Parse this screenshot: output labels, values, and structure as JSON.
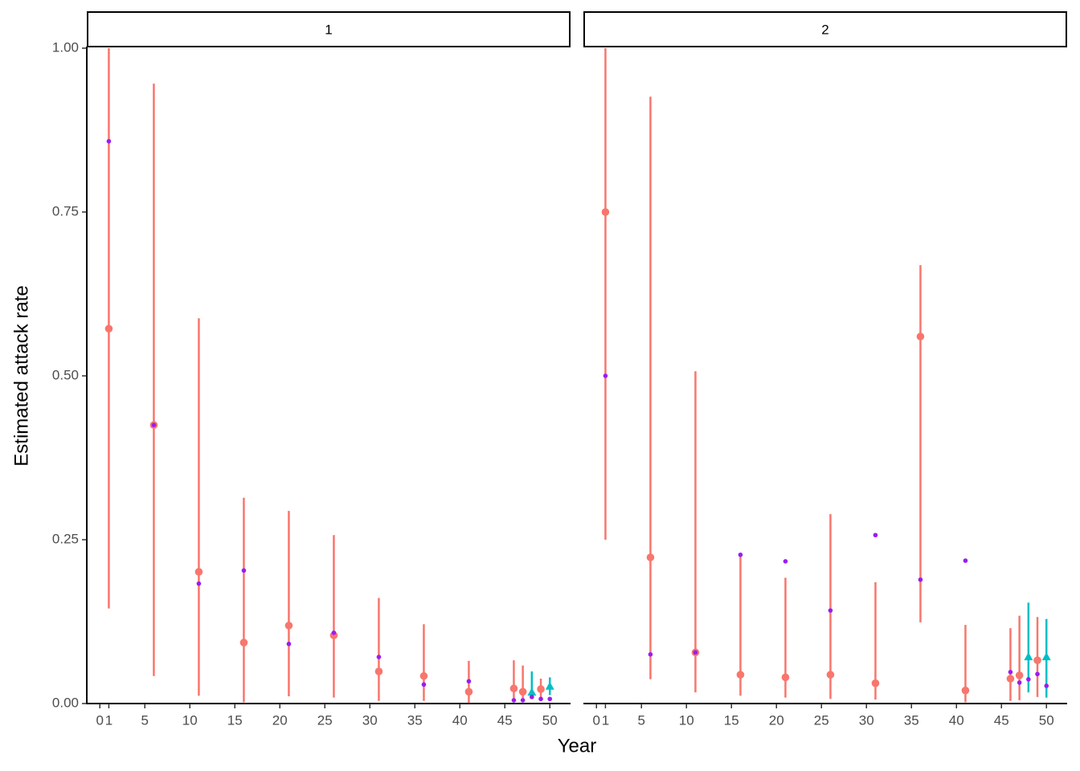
{
  "chart_data": [
    {
      "type": "errorbar",
      "title": "1",
      "xlabel": "Year",
      "ylabel": "Estimated attack rate",
      "x": [
        1,
        6,
        11,
        16,
        21,
        26,
        31,
        36,
        41,
        46,
        47,
        48,
        49,
        50
      ],
      "xlim": [
        -1.45,
        52.3
      ],
      "xticks": [
        0,
        1,
        5,
        10,
        15,
        20,
        25,
        30,
        35,
        40,
        45,
        50
      ],
      "ylim": [
        0,
        1
      ],
      "yticks": [
        {
          "value": 0,
          "label": "0.00"
        },
        {
          "value": 0.25,
          "label": "0.25"
        },
        {
          "value": 0.5,
          "label": "0.50"
        },
        {
          "value": 0.75,
          "label": "0.75"
        },
        {
          "value": 1,
          "label": "1.00"
        }
      ],
      "series": [
        {
          "color": "#F8766D",
          "marker": "circle",
          "values": [
            0.572,
            0.425,
            0.201,
            0.093,
            0.119,
            0.104,
            0.049,
            0.042,
            0.018,
            0.023,
            0.018,
            null,
            0.022,
            null
          ],
          "lower": [
            0.145,
            0.042,
            0.012,
            0.002,
            0.011,
            0.009,
            0.004,
            0.004,
            0.001,
            0.002,
            0.002,
            null,
            0.007,
            null
          ],
          "upper": [
            1,
            0.946,
            0.588,
            0.314,
            0.294,
            0.257,
            0.161,
            0.121,
            0.065,
            0.066,
            0.058,
            null,
            0.038,
            null
          ]
        },
        {
          "color": "#00BFC4",
          "marker": "triangle",
          "values": [
            null,
            null,
            null,
            null,
            null,
            null,
            null,
            null,
            null,
            null,
            null,
            0.017,
            null,
            0.026
          ],
          "lower": [
            null,
            null,
            null,
            null,
            null,
            null,
            null,
            null,
            null,
            null,
            null,
            0.007,
            null,
            0.013
          ],
          "upper": [
            null,
            null,
            null,
            null,
            null,
            null,
            null,
            null,
            null,
            null,
            null,
            0.049,
            null,
            0.04
          ]
        },
        {
          "color": "#9B1CF2",
          "marker": "dot",
          "values": [
            0.858,
            0.425,
            0.183,
            0.203,
            0.091,
            0.108,
            0.071,
            0.029,
            0.034,
            0.005,
            0.005,
            0.01,
            0.007,
            0.007
          ]
        }
      ]
    },
    {
      "type": "errorbar",
      "title": "2",
      "x": [
        1,
        6,
        11,
        16,
        21,
        26,
        31,
        36,
        41,
        46,
        47,
        48,
        49,
        50
      ],
      "xlim": [
        -1.45,
        52.3
      ],
      "xticks": [
        0,
        1,
        5,
        10,
        15,
        20,
        25,
        30,
        35,
        40,
        45,
        50
      ],
      "ylim": [
        0,
        1
      ],
      "series": [
        {
          "color": "#F8766D",
          "marker": "circle",
          "values": [
            0.75,
            0.223,
            0.078,
            0.044,
            0.04,
            0.044,
            0.031,
            0.56,
            0.02,
            0.038,
            0.043,
            null,
            0.066,
            null
          ],
          "lower": [
            0.25,
            0.037,
            0.017,
            0.012,
            0.009,
            0.007,
            0.006,
            0.124,
            0.002,
            0.004,
            0.005,
            null,
            0.01,
            null
          ],
          "upper": [
            1,
            0.926,
            0.507,
            0.228,
            0.192,
            0.289,
            0.185,
            0.669,
            0.12,
            0.115,
            0.134,
            null,
            0.132,
            null
          ]
        },
        {
          "color": "#00BFC4",
          "marker": "triangle",
          "values": [
            null,
            null,
            null,
            null,
            null,
            null,
            null,
            null,
            null,
            null,
            null,
            0.071,
            null,
            0.071
          ],
          "lower": [
            null,
            null,
            null,
            null,
            null,
            null,
            null,
            null,
            null,
            null,
            null,
            0.017,
            null,
            0.009
          ],
          "upper": [
            null,
            null,
            null,
            null,
            null,
            null,
            null,
            null,
            null,
            null,
            null,
            0.154,
            null,
            0.129
          ]
        },
        {
          "color": "#9B1CF2",
          "marker": "dot",
          "values": [
            0.5,
            0.075,
            0.078,
            0.227,
            0.217,
            0.142,
            0.257,
            0.189,
            0.218,
            0.048,
            0.032,
            0.037,
            0.045,
            0.027
          ]
        }
      ]
    }
  ]
}
